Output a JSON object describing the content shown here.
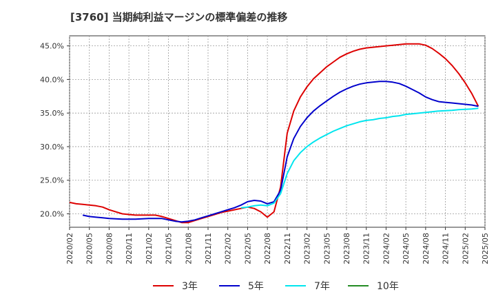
{
  "title": "[3760]  当期純利益マージンの標準偏差の推移",
  "chart_data": {
    "type": "line",
    "title": "[3760]  当期純利益マージンの標準偏差の推移",
    "xlabel": "",
    "ylabel": "",
    "x_ticks": [
      "2020/02",
      "2020/05",
      "2020/08",
      "2020/11",
      "2021/02",
      "2021/05",
      "2021/08",
      "2021/11",
      "2022/02",
      "2022/05",
      "2022/08",
      "2022/11",
      "2023/02",
      "2023/05",
      "2023/08",
      "2023/11",
      "2024/02",
      "2024/05",
      "2024/08",
      "2024/11",
      "2025/02",
      "2025/05"
    ],
    "y_ticks": [
      "45.0%",
      "40.0%",
      "35.0%",
      "30.0%",
      "25.0%",
      "20.0%"
    ],
    "y_tick_values": [
      45,
      40,
      35,
      30,
      25,
      20
    ],
    "ylim": [
      18,
      46.5
    ],
    "xlim": [
      "2020/02",
      "2025/05"
    ],
    "grid": true,
    "legend_position": "bottom",
    "series": [
      {
        "name": "3年",
        "color": "#dd0000",
        "points": [
          [
            "2020/02",
            21.7
          ],
          [
            "2020/03",
            21.5
          ],
          [
            "2020/04",
            21.4
          ],
          [
            "2020/05",
            21.3
          ],
          [
            "2020/06",
            21.2
          ],
          [
            "2020/07",
            21.0
          ],
          [
            "2020/08",
            20.6
          ],
          [
            "2020/09",
            20.3
          ],
          [
            "2020/10",
            20.0
          ],
          [
            "2020/11",
            19.9
          ],
          [
            "2020/12",
            19.8
          ],
          [
            "2021/01",
            19.8
          ],
          [
            "2021/02",
            19.8
          ],
          [
            "2021/03",
            19.8
          ],
          [
            "2021/04",
            19.6
          ],
          [
            "2021/05",
            19.3
          ],
          [
            "2021/06",
            19.0
          ],
          [
            "2021/07",
            18.7
          ],
          [
            "2021/08",
            18.7
          ],
          [
            "2021/09",
            19.0
          ],
          [
            "2021/10",
            19.3
          ],
          [
            "2021/11",
            19.6
          ],
          [
            "2021/12",
            19.9
          ],
          [
            "2022/01",
            20.2
          ],
          [
            "2022/02",
            20.4
          ],
          [
            "2022/03",
            20.6
          ],
          [
            "2022/04",
            20.8
          ],
          [
            "2022/05",
            21.0
          ],
          [
            "2022/06",
            20.8
          ],
          [
            "2022/07",
            20.3
          ],
          [
            "2022/08",
            19.5
          ],
          [
            "2022/09",
            20.3
          ],
          [
            "2022/10",
            24.0
          ],
          [
            "2022/11",
            32.0
          ],
          [
            "2022/12",
            35.3
          ],
          [
            "2023/01",
            37.4
          ],
          [
            "2023/02",
            38.9
          ],
          [
            "2023/03",
            40.1
          ],
          [
            "2023/04",
            41.0
          ],
          [
            "2023/05",
            41.9
          ],
          [
            "2023/06",
            42.6
          ],
          [
            "2023/07",
            43.3
          ],
          [
            "2023/08",
            43.8
          ],
          [
            "2023/09",
            44.2
          ],
          [
            "2023/10",
            44.5
          ],
          [
            "2023/11",
            44.7
          ],
          [
            "2023/12",
            44.8
          ],
          [
            "2024/01",
            44.9
          ],
          [
            "2024/02",
            45.0
          ],
          [
            "2024/03",
            45.1
          ],
          [
            "2024/04",
            45.2
          ],
          [
            "2024/05",
            45.3
          ],
          [
            "2024/06",
            45.3
          ],
          [
            "2024/07",
            45.3
          ],
          [
            "2024/08",
            45.1
          ],
          [
            "2024/09",
            44.6
          ],
          [
            "2024/10",
            43.9
          ],
          [
            "2024/11",
            43.1
          ],
          [
            "2024/12",
            42.1
          ],
          [
            "2025/01",
            40.9
          ],
          [
            "2025/02",
            39.5
          ],
          [
            "2025/03",
            37.9
          ],
          [
            "2025/04",
            36.0
          ]
        ]
      },
      {
        "name": "5年",
        "color": "#0000cc",
        "points": [
          [
            "2020/04",
            19.8
          ],
          [
            "2020/05",
            19.6
          ],
          [
            "2020/06",
            19.5
          ],
          [
            "2020/07",
            19.4
          ],
          [
            "2020/08",
            19.3
          ],
          [
            "2020/09",
            19.25
          ],
          [
            "2020/10",
            19.2
          ],
          [
            "2020/11",
            19.2
          ],
          [
            "2020/12",
            19.2
          ],
          [
            "2021/01",
            19.25
          ],
          [
            "2021/02",
            19.3
          ],
          [
            "2021/03",
            19.3
          ],
          [
            "2021/04",
            19.3
          ],
          [
            "2021/05",
            19.1
          ],
          [
            "2021/06",
            18.9
          ],
          [
            "2021/07",
            18.8
          ],
          [
            "2021/08",
            18.9
          ],
          [
            "2021/09",
            19.1
          ],
          [
            "2021/10",
            19.4
          ],
          [
            "2021/11",
            19.7
          ],
          [
            "2021/12",
            20.0
          ],
          [
            "2022/01",
            20.3
          ],
          [
            "2022/02",
            20.6
          ],
          [
            "2022/03",
            20.9
          ],
          [
            "2022/04",
            21.3
          ],
          [
            "2022/05",
            21.8
          ],
          [
            "2022/06",
            22.0
          ],
          [
            "2022/07",
            21.9
          ],
          [
            "2022/08",
            21.5
          ],
          [
            "2022/09",
            21.8
          ],
          [
            "2022/10",
            23.5
          ],
          [
            "2022/11",
            28.5
          ],
          [
            "2022/12",
            31.2
          ],
          [
            "2023/01",
            33.0
          ],
          [
            "2023/02",
            34.3
          ],
          [
            "2023/03",
            35.3
          ],
          [
            "2023/04",
            36.1
          ],
          [
            "2023/05",
            36.8
          ],
          [
            "2023/06",
            37.5
          ],
          [
            "2023/07",
            38.1
          ],
          [
            "2023/08",
            38.6
          ],
          [
            "2023/09",
            39.0
          ],
          [
            "2023/10",
            39.3
          ],
          [
            "2023/11",
            39.5
          ],
          [
            "2023/12",
            39.6
          ],
          [
            "2024/01",
            39.7
          ],
          [
            "2024/02",
            39.7
          ],
          [
            "2024/03",
            39.6
          ],
          [
            "2024/04",
            39.4
          ],
          [
            "2024/05",
            39.0
          ],
          [
            "2024/06",
            38.5
          ],
          [
            "2024/07",
            38.0
          ],
          [
            "2024/08",
            37.4
          ],
          [
            "2024/09",
            37.0
          ],
          [
            "2024/10",
            36.7
          ],
          [
            "2024/11",
            36.6
          ],
          [
            "2024/12",
            36.5
          ],
          [
            "2025/01",
            36.4
          ],
          [
            "2025/02",
            36.3
          ],
          [
            "2025/03",
            36.2
          ],
          [
            "2025/04",
            36.0
          ]
        ]
      },
      {
        "name": "7年",
        "color": "#00e5ee",
        "points": [
          [
            "2022/04",
            20.9
          ],
          [
            "2022/05",
            21.0
          ],
          [
            "2022/06",
            21.2
          ],
          [
            "2022/07",
            21.3
          ],
          [
            "2022/08",
            21.2
          ],
          [
            "2022/09",
            21.6
          ],
          [
            "2022/10",
            23.0
          ],
          [
            "2022/11",
            26.0
          ],
          [
            "2022/12",
            27.9
          ],
          [
            "2023/01",
            29.1
          ],
          [
            "2023/02",
            30.0
          ],
          [
            "2023/03",
            30.7
          ],
          [
            "2023/04",
            31.3
          ],
          [
            "2023/05",
            31.8
          ],
          [
            "2023/06",
            32.3
          ],
          [
            "2023/07",
            32.7
          ],
          [
            "2023/08",
            33.1
          ],
          [
            "2023/09",
            33.4
          ],
          [
            "2023/10",
            33.7
          ],
          [
            "2023/11",
            33.9
          ],
          [
            "2023/12",
            34.0
          ],
          [
            "2024/01",
            34.2
          ],
          [
            "2024/02",
            34.3
          ],
          [
            "2024/03",
            34.5
          ],
          [
            "2024/04",
            34.6
          ],
          [
            "2024/05",
            34.8
          ],
          [
            "2024/06",
            34.9
          ],
          [
            "2024/07",
            35.0
          ],
          [
            "2024/08",
            35.1
          ],
          [
            "2024/09",
            35.2
          ],
          [
            "2024/10",
            35.3
          ],
          [
            "2024/11",
            35.35
          ],
          [
            "2024/12",
            35.4
          ],
          [
            "2025/01",
            35.5
          ],
          [
            "2025/02",
            35.55
          ],
          [
            "2025/03",
            35.6
          ],
          [
            "2025/04",
            35.7
          ]
        ]
      },
      {
        "name": "10年",
        "color": "#228b22",
        "points": []
      }
    ]
  }
}
